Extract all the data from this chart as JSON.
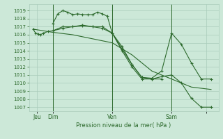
{
  "bg_color": "#cce8d8",
  "grid_color": "#aaccbb",
  "line_color": "#2d6a2d",
  "marker_color": "#2d6a2d",
  "xlabel_text": "Pression niveau de la mer( hPa )",
  "ylim": [
    1006.5,
    1019.8
  ],
  "yticks": [
    1007,
    1008,
    1009,
    1010,
    1011,
    1012,
    1013,
    1014,
    1015,
    1016,
    1017,
    1018,
    1019
  ],
  "xlim": [
    -5,
    225
  ],
  "vlines": [
    24,
    96,
    168
  ],
  "xlabel_ticks": [
    5,
    24,
    96,
    168,
    210
  ],
  "xlabel_labels": [
    "Jeu",
    "Dim",
    "Ven",
    "Sam",
    ""
  ],
  "series1_x": [
    0,
    3,
    6,
    9,
    12,
    18,
    24,
    36,
    48,
    60,
    72,
    84,
    96,
    108,
    120,
    132,
    144,
    156,
    168,
    180,
    192,
    204,
    216
  ],
  "series1_y": [
    1016.7,
    1016.2,
    1016.1,
    1016.0,
    1016.2,
    1016.4,
    1016.5,
    1017.0,
    1017.0,
    1017.1,
    1017.0,
    1017.0,
    1016.2,
    1014.5,
    1012.3,
    1010.7,
    1010.6,
    1011.5,
    1016.2,
    1014.8,
    1012.5,
    1010.5,
    1010.5
  ],
  "series2_x": [
    24,
    30,
    36,
    42,
    48,
    54,
    60,
    66,
    72,
    78,
    84,
    90,
    96,
    108,
    120,
    132,
    144,
    156
  ],
  "series2_y": [
    1017.4,
    1018.6,
    1019.0,
    1018.8,
    1018.5,
    1018.6,
    1018.5,
    1018.5,
    1018.5,
    1018.8,
    1018.6,
    1018.3,
    1016.2,
    1014.2,
    1012.3,
    1010.7,
    1010.5,
    1010.5
  ],
  "series3_x": [
    24,
    36,
    48,
    60,
    72,
    84,
    96,
    108,
    120,
    132,
    144,
    156,
    168,
    180,
    192,
    204,
    216
  ],
  "series3_y": [
    1016.5,
    1016.8,
    1017.0,
    1017.2,
    1017.0,
    1016.8,
    1016.2,
    1014.0,
    1012.0,
    1010.5,
    1010.5,
    1010.8,
    1011.0,
    1010.0,
    1008.1,
    1007.0,
    1007.0
  ],
  "series4_x": [
    0,
    24,
    48,
    72,
    96,
    120,
    144,
    168,
    192,
    216
  ],
  "series4_y": [
    1016.7,
    1016.3,
    1016.0,
    1015.5,
    1015.0,
    1013.5,
    1011.5,
    1010.5,
    1009.5,
    1009.2
  ]
}
